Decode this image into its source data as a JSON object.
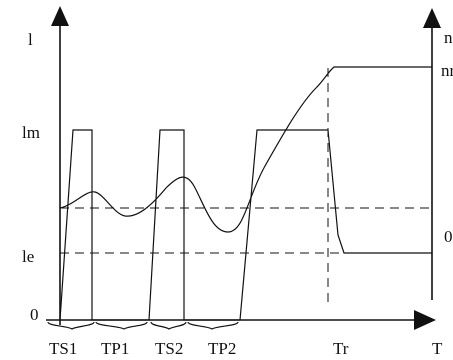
{
  "diagram": {
    "left_axis_top_label": "l",
    "right_axis_top_label": "n",
    "y_labels_left": {
      "max": "lm",
      "rated": "le",
      "origin": "0"
    },
    "y_labels_right": {
      "max": "nr",
      "zero": "0"
    },
    "x_labels": [
      "TS1",
      "TP1",
      "TS2",
      "TP2",
      "Tr",
      "T"
    ]
  }
}
